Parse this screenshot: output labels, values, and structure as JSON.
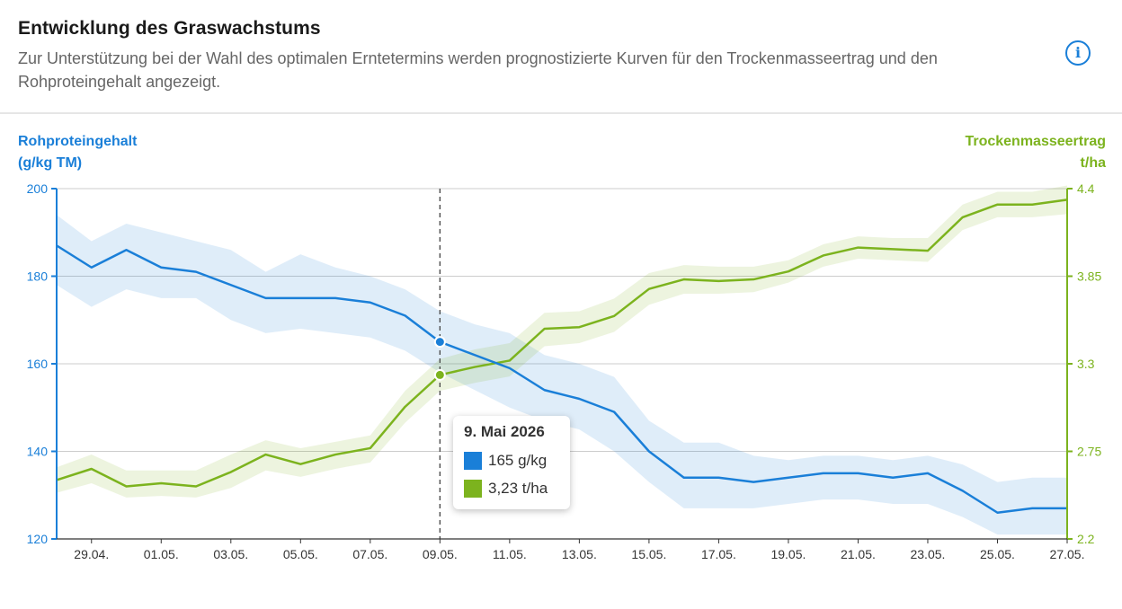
{
  "header": {
    "title": "Entwicklung des Graswachstums",
    "subtitle": "Zur Unterstützung bei der Wahl des optimalen Erntetermins werden prognostizierte Kurven für den Trockenmasseertrag und den Rohproteingehalt angezeigt.",
    "info_icon": "info-icon"
  },
  "colors": {
    "protein": "#1a7fd8",
    "yield": "#7cb31e",
    "grid": "#cccccc",
    "text": "#333333"
  },
  "axes": {
    "left": {
      "title_line1": "Rohproteingehalt",
      "title_line2": "(g/kg TM)"
    },
    "right": {
      "title_line1": "Trockenmasseertrag",
      "title_line2": "t/ha"
    }
  },
  "tooltip": {
    "date": "9. Mai 2026",
    "protein": "165 g/kg",
    "yield": "3,23 t/ha"
  },
  "chart_data": {
    "type": "line",
    "title": "Entwicklung des Graswachstums",
    "x_dates": [
      "28.04.",
      "29.04.",
      "30.04.",
      "01.05.",
      "02.05.",
      "03.05.",
      "04.05.",
      "05.05.",
      "06.05.",
      "07.05.",
      "08.05.",
      "09.05.",
      "10.05.",
      "11.05.",
      "12.05.",
      "13.05.",
      "14.05.",
      "15.05.",
      "16.05.",
      "17.05.",
      "18.05.",
      "19.05.",
      "20.05.",
      "21.05.",
      "22.05.",
      "23.05.",
      "24.05.",
      "25.05.",
      "26.05.",
      "27.05."
    ],
    "x_tick_labels": [
      "29.04.",
      "01.05.",
      "03.05.",
      "05.05.",
      "07.05.",
      "09.05.",
      "11.05.",
      "13.05.",
      "15.05.",
      "17.05.",
      "19.05.",
      "21.05.",
      "23.05.",
      "25.05.",
      "27.05."
    ],
    "ylim_left": [
      120,
      200
    ],
    "yticks_left": [
      "120",
      "140",
      "160",
      "180",
      "200"
    ],
    "ylim_right": [
      2.2,
      4.4
    ],
    "yticks_right": [
      "2.2",
      "2.75",
      "3.3",
      "3.85",
      "4.4"
    ],
    "marker_date": "09.05.",
    "series": [
      {
        "name": "Rohproteingehalt",
        "unit": "g/kg TM",
        "axis": "left",
        "values": [
          187,
          182,
          186,
          182,
          181,
          178,
          175,
          175,
          175,
          174,
          171,
          165,
          162,
          159,
          154,
          152,
          149,
          140,
          134,
          134,
          133,
          134,
          135,
          135,
          134,
          135,
          131,
          126,
          127,
          127
        ],
        "band_upper": [
          194,
          188,
          192,
          190,
          188,
          186,
          181,
          185,
          182,
          180,
          177,
          172,
          169,
          167,
          162,
          160,
          157,
          147,
          142,
          142,
          139,
          138,
          139,
          139,
          138,
          139,
          137,
          133,
          134,
          134
        ],
        "band_lower": [
          178,
          173,
          177,
          175,
          175,
          170,
          167,
          168,
          167,
          166,
          163,
          158,
          154,
          150,
          147,
          145,
          140,
          133,
          127,
          127,
          127,
          128,
          129,
          129,
          128,
          128,
          125,
          121,
          121,
          121
        ]
      },
      {
        "name": "Trockenmasseertrag",
        "unit": "t/ha",
        "axis": "right",
        "values": [
          2.57,
          2.64,
          2.53,
          2.55,
          2.53,
          2.62,
          2.73,
          2.67,
          2.73,
          2.77,
          3.03,
          3.23,
          3.28,
          3.32,
          3.52,
          3.53,
          3.6,
          3.77,
          3.83,
          3.82,
          3.83,
          3.88,
          3.98,
          4.03,
          4.02,
          4.01,
          4.22,
          4.3,
          4.3,
          4.33
        ],
        "band_upper": [
          2.65,
          2.73,
          2.63,
          2.63,
          2.63,
          2.73,
          2.82,
          2.77,
          2.81,
          2.85,
          3.13,
          3.33,
          3.39,
          3.43,
          3.62,
          3.63,
          3.71,
          3.87,
          3.92,
          3.91,
          3.91,
          3.95,
          4.05,
          4.1,
          4.09,
          4.09,
          4.3,
          4.38,
          4.38,
          4.42
        ],
        "band_lower": [
          2.49,
          2.55,
          2.46,
          2.47,
          2.46,
          2.52,
          2.63,
          2.59,
          2.64,
          2.68,
          2.93,
          3.13,
          3.18,
          3.22,
          3.41,
          3.43,
          3.5,
          3.67,
          3.74,
          3.74,
          3.75,
          3.81,
          3.91,
          3.96,
          3.95,
          3.94,
          4.14,
          4.22,
          4.22,
          4.24
        ]
      }
    ]
  }
}
